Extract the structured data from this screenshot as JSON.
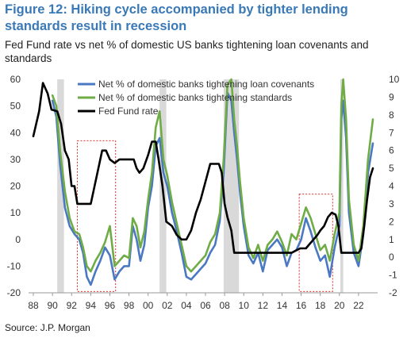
{
  "title": "Figure 12: Hiking cycle accompanied by tighter lending standards result in recession",
  "subtitle": "Fed Fund rate vs net % of domestic US banks tightening loan covenants and standards",
  "source": "Source: J.P. Morgan",
  "colors": {
    "title": "#3a79b7",
    "covenants": "#4a78c2",
    "standards": "#6fac46",
    "fedfund": "#000000",
    "recession": "#d9d9d9",
    "highlight_box": "#d9302b"
  },
  "chart_data": {
    "type": "line",
    "xlim": [
      1987.5,
      2024
    ],
    "x_ticks": [
      1988,
      1990,
      1992,
      1994,
      1996,
      1998,
      2000,
      2002,
      2004,
      2006,
      2008,
      2010,
      2012,
      2014,
      2016,
      2018,
      2020,
      2022
    ],
    "x_tick_labels": [
      "88",
      "90",
      "92",
      "94",
      "96",
      "98",
      "00",
      "02",
      "04",
      "06",
      "08",
      "10",
      "12",
      "14",
      "16",
      "18",
      "20",
      "22"
    ],
    "y_left": {
      "lim": [
        -20,
        60
      ],
      "ticks": [
        -20,
        -10,
        0,
        10,
        20,
        30,
        40,
        50,
        60
      ]
    },
    "y_right": {
      "lim": [
        -2,
        10
      ],
      "ticks": [
        -2,
        -1,
        0,
        1,
        2,
        3,
        4,
        5,
        6,
        7,
        8,
        9,
        10
      ]
    },
    "grid": false,
    "legend_placement": "top-center",
    "recessions": [
      [
        1990.5,
        1991.2
      ],
      [
        2001.2,
        2001.9
      ],
      [
        2007.9,
        2009.5
      ],
      [
        2020.1,
        2020.4
      ]
    ],
    "highlight_boxes": [
      {
        "x": [
          1992.6,
          1996.6
        ],
        "y": [
          -19.5,
          37
        ]
      },
      {
        "x": [
          2015.8,
          2019.3
        ],
        "y": [
          -19.5,
          17
        ]
      }
    ],
    "series": [
      {
        "name": "Net % of domestic banks tightening loan covenants",
        "axis": "left",
        "x": [
          1990.0,
          1990.4,
          1990.8,
          1991.3,
          1991.8,
          1992.3,
          1992.8,
          1993.2,
          1993.6,
          1994.0,
          1994.5,
          1995.0,
          1995.5,
          1996.0,
          1996.5,
          1997.0,
          1997.5,
          1998.0,
          1998.4,
          1998.8,
          1999.2,
          1999.6,
          2000.0,
          2000.4,
          2000.8,
          2001.2,
          2001.6,
          2002.0,
          2002.5,
          2003.0,
          2003.5,
          2004.0,
          2004.5,
          2005.0,
          2005.5,
          2006.0,
          2006.5,
          2007.0,
          2007.5,
          2007.9,
          2008.3,
          2008.7,
          2009.0,
          2009.3,
          2009.6,
          2010.0,
          2010.5,
          2011.0,
          2011.5,
          2012.0,
          2012.5,
          2013.0,
          2013.5,
          2014.0,
          2014.5,
          2015.0,
          2015.5,
          2016.0,
          2016.5,
          2017.0,
          2017.5,
          2018.0,
          2018.5,
          2019.0,
          2019.5,
          2020.0,
          2020.2,
          2020.4,
          2020.7,
          2021.0,
          2021.5,
          2022.0,
          2022.5,
          2023.0,
          2023.5
        ],
        "values": [
          52,
          46,
          28,
          12,
          5,
          2,
          0,
          -5,
          -14,
          -17,
          -12,
          -8,
          -3,
          -6,
          -15,
          -12,
          -10,
          -10,
          5,
          0,
          -8,
          -2,
          12,
          20,
          35,
          38,
          25,
          20,
          10,
          3,
          -5,
          -14,
          -15,
          -13,
          -11,
          -9,
          -5,
          -2,
          7,
          25,
          55,
          52,
          40,
          30,
          18,
          5,
          -6,
          -9,
          -5,
          -12,
          -4,
          -2,
          0,
          -3,
          -10,
          -5,
          -4,
          0,
          8,
          3,
          -3,
          -8,
          -6,
          -14,
          -3,
          5,
          45,
          52,
          38,
          10,
          -5,
          -10,
          2,
          25,
          36
        ]
      },
      {
        "name": "Net % of domestic banks tightening standards",
        "axis": "left",
        "x": [
          1990.0,
          1990.4,
          1990.8,
          1991.3,
          1991.8,
          1992.3,
          1992.8,
          1993.2,
          1993.6,
          1994.0,
          1994.5,
          1995.0,
          1995.5,
          1996.0,
          1996.5,
          1997.0,
          1997.5,
          1998.0,
          1998.4,
          1998.8,
          1999.2,
          1999.6,
          2000.0,
          2000.4,
          2000.8,
          2001.2,
          2001.6,
          2002.0,
          2002.5,
          2003.0,
          2003.5,
          2004.0,
          2004.5,
          2005.0,
          2005.5,
          2006.0,
          2006.5,
          2007.0,
          2007.5,
          2007.9,
          2008.3,
          2008.7,
          2009.0,
          2009.3,
          2009.6,
          2010.0,
          2010.5,
          2011.0,
          2011.5,
          2012.0,
          2012.5,
          2013.0,
          2013.5,
          2014.0,
          2014.5,
          2015.0,
          2015.5,
          2016.0,
          2016.5,
          2017.0,
          2017.5,
          2018.0,
          2018.5,
          2019.0,
          2019.5,
          2020.0,
          2020.2,
          2020.4,
          2020.7,
          2021.0,
          2021.5,
          2022.0,
          2022.5,
          2023.0,
          2023.5
        ],
        "values": [
          54,
          50,
          33,
          18,
          8,
          3,
          2,
          -3,
          -10,
          -12,
          -8,
          -5,
          -1,
          5,
          -10,
          -8,
          -6,
          -7,
          8,
          5,
          -3,
          3,
          15,
          25,
          42,
          48,
          30,
          24,
          14,
          6,
          -2,
          -10,
          -12,
          -10,
          -8,
          -6,
          -1,
          2,
          10,
          30,
          58,
          60,
          45,
          35,
          22,
          8,
          -3,
          -7,
          -2,
          -8,
          -2,
          0,
          3,
          -1,
          -6,
          2,
          0,
          6,
          12,
          8,
          2,
          -4,
          -2,
          -8,
          2,
          10,
          50,
          60,
          45,
          15,
          -2,
          -8,
          5,
          30,
          45
        ]
      },
      {
        "name": "Fed Fund rate",
        "axis": "right",
        "x": [
          1988.0,
          1988.6,
          1989.0,
          1989.5,
          1989.9,
          1990.5,
          1990.9,
          1991.3,
          1991.7,
          1992.0,
          1992.3,
          1992.6,
          1993.0,
          1993.5,
          1994.0,
          1994.4,
          1994.8,
          1995.2,
          1995.6,
          1996.0,
          1996.5,
          1997.0,
          1997.5,
          1998.0,
          1998.5,
          1998.8,
          1999.1,
          1999.5,
          2000.0,
          2000.4,
          2000.8,
          2001.1,
          2001.5,
          2001.9,
          2002.5,
          2003.0,
          2003.5,
          2004.0,
          2004.5,
          2005.0,
          2005.5,
          2006.0,
          2006.5,
          2007.0,
          2007.4,
          2007.7,
          2008.0,
          2008.3,
          2008.7,
          2009.0,
          2009.5,
          2010.0,
          2011.0,
          2012.0,
          2013.0,
          2014.0,
          2015.0,
          2015.9,
          2016.5,
          2016.9,
          2017.3,
          2017.7,
          2018.0,
          2018.4,
          2018.8,
          2019.2,
          2019.6,
          2019.9,
          2020.2,
          2020.5,
          2021.0,
          2021.5,
          2022.0,
          2022.3,
          2022.6,
          2022.9,
          2023.2,
          2023.5
        ],
        "values": [
          6.8,
          8.2,
          9.8,
          9.2,
          8.3,
          8.2,
          7.5,
          6.0,
          5.5,
          4.0,
          4.0,
          3.0,
          3.0,
          3.0,
          3.0,
          4.0,
          5.0,
          6.0,
          6.0,
          5.5,
          5.3,
          5.5,
          5.5,
          5.5,
          5.5,
          5.0,
          4.75,
          5.0,
          5.75,
          6.5,
          6.5,
          5.5,
          4.0,
          2.0,
          1.75,
          1.25,
          1.0,
          1.0,
          1.5,
          2.5,
          3.25,
          4.25,
          5.25,
          5.25,
          5.25,
          4.75,
          3.0,
          2.25,
          1.5,
          0.25,
          0.25,
          0.25,
          0.25,
          0.25,
          0.25,
          0.25,
          0.25,
          0.5,
          0.5,
          0.75,
          1.0,
          1.25,
          1.5,
          1.75,
          2.25,
          2.5,
          2.4,
          1.75,
          0.25,
          0.25,
          0.25,
          0.25,
          0.25,
          0.5,
          1.75,
          3.25,
          4.5,
          5.0
        ]
      }
    ]
  }
}
